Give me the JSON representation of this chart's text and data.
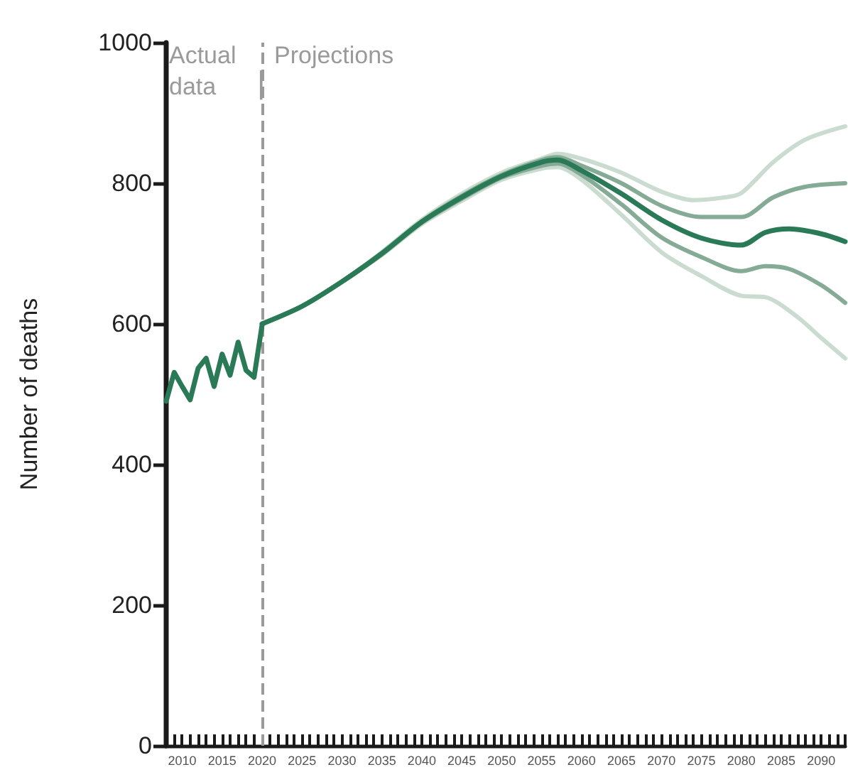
{
  "chart_data": {
    "type": "line",
    "ylabel": "Number of deaths",
    "xlim": [
      2008,
      2093
    ],
    "ylim": [
      0,
      1000
    ],
    "yticks": [
      0,
      200,
      400,
      600,
      800,
      1000
    ],
    "xticks": [
      {
        "value": 2008,
        "label": null
      },
      {
        "value": 2009,
        "label": null
      },
      2010,
      {
        "value": 2011,
        "label": null
      },
      {
        "value": 2012,
        "label": null
      },
      {
        "value": 2013,
        "label": null
      },
      {
        "value": 2014,
        "label": null
      },
      2015,
      {
        "value": 2016,
        "label": null
      },
      {
        "value": 2017,
        "label": null
      },
      {
        "value": 2018,
        "label": null
      },
      {
        "value": 2019,
        "label": null
      },
      2020,
      {
        "value": 2021,
        "label": null
      },
      {
        "value": 2022,
        "label": null
      },
      {
        "value": 2023,
        "label": null
      },
      {
        "value": 2024,
        "label": null
      },
      2025,
      {
        "value": 2026,
        "label": null
      },
      {
        "value": 2027,
        "label": null
      },
      {
        "value": 2028,
        "label": null
      },
      {
        "value": 2029,
        "label": null
      },
      2030,
      {
        "value": 2031,
        "label": null
      },
      {
        "value": 2032,
        "label": null
      },
      {
        "value": 2033,
        "label": null
      },
      {
        "value": 2034,
        "label": null
      },
      2035,
      {
        "value": 2036,
        "label": null
      },
      {
        "value": 2037,
        "label": null
      },
      {
        "value": 2038,
        "label": null
      },
      {
        "value": 2039,
        "label": null
      },
      2040,
      {
        "value": 2041,
        "label": null
      },
      {
        "value": 2042,
        "label": null
      },
      {
        "value": 2043,
        "label": null
      },
      {
        "value": 2044,
        "label": null
      },
      2045,
      {
        "value": 2046,
        "label": null
      },
      {
        "value": 2047,
        "label": null
      },
      {
        "value": 2048,
        "label": null
      },
      {
        "value": 2049,
        "label": null
      },
      2050,
      {
        "value": 2051,
        "label": null
      },
      {
        "value": 2052,
        "label": null
      },
      {
        "value": 2053,
        "label": null
      },
      {
        "value": 2054,
        "label": null
      },
      2055,
      {
        "value": 2056,
        "label": null
      },
      {
        "value": 2057,
        "label": null
      },
      {
        "value": 2058,
        "label": null
      },
      {
        "value": 2059,
        "label": null
      },
      2060,
      {
        "value": 2061,
        "label": null
      },
      {
        "value": 2062,
        "label": null
      },
      {
        "value": 2063,
        "label": null
      },
      {
        "value": 2064,
        "label": null
      },
      2065,
      {
        "value": 2066,
        "label": null
      },
      {
        "value": 2067,
        "label": null
      },
      {
        "value": 2068,
        "label": null
      },
      {
        "value": 2069,
        "label": null
      },
      2070,
      {
        "value": 2071,
        "label": null
      },
      {
        "value": 2072,
        "label": null
      },
      {
        "value": 2073,
        "label": null
      },
      {
        "value": 2074,
        "label": null
      },
      2075,
      {
        "value": 2076,
        "label": null
      },
      {
        "value": 2077,
        "label": null
      },
      {
        "value": 2078,
        "label": null
      },
      {
        "value": 2079,
        "label": null
      },
      2080,
      {
        "value": 2081,
        "label": null
      },
      {
        "value": 2082,
        "label": null
      },
      {
        "value": 2083,
        "label": null
      },
      {
        "value": 2084,
        "label": null
      },
      2085,
      {
        "value": 2086,
        "label": null
      },
      {
        "value": 2087,
        "label": null
      },
      {
        "value": 2088,
        "label": null
      },
      {
        "value": 2089,
        "label": null
      },
      2090,
      {
        "value": 2091,
        "label": null
      },
      {
        "value": 2092,
        "label": null
      },
      {
        "value": 2093,
        "label": null
      }
    ],
    "grid": false,
    "marker": "none",
    "line_style": "solid",
    "ref_lines": [
      {
        "axis": "x",
        "value": 2020,
        "color": "#9a9a9a",
        "line_style": "dashed"
      }
    ],
    "annotations": [
      "Actual data",
      "|",
      "Projections"
    ],
    "series": [
      {
        "color": "#cadbd0",
        "x": [
          2020,
          2025,
          2030,
          2035,
          2040,
          2045,
          2050,
          2055,
          2057,
          2060,
          2065,
          2070,
          2074,
          2078,
          2080,
          2084,
          2088,
          2093
        ],
        "values": [
          600,
          625,
          660,
          702,
          748,
          785,
          815,
          835,
          842,
          835,
          815,
          788,
          776,
          780,
          786,
          830,
          862,
          881
        ]
      },
      {
        "color": "#cadbd0",
        "x": [
          2020,
          2025,
          2030,
          2035,
          2040,
          2045,
          2050,
          2055,
          2057,
          2060,
          2065,
          2070,
          2075,
          2080,
          2083,
          2087,
          2090,
          2093
        ],
        "values": [
          600,
          625,
          660,
          698,
          742,
          775,
          805,
          821,
          823,
          805,
          755,
          702,
          668,
          640,
          638,
          610,
          580,
          551
        ]
      },
      {
        "color": "#85ab96",
        "x": [
          2020,
          2025,
          2030,
          2035,
          2040,
          2045,
          2050,
          2055,
          2057,
          2060,
          2065,
          2070,
          2075,
          2080,
          2084,
          2088,
          2093
        ],
        "values": [
          600,
          625,
          660,
          701,
          746,
          782,
          812,
          833,
          837,
          825,
          800,
          768,
          752,
          752,
          780,
          795,
          800
        ]
      },
      {
        "color": "#85ab96",
        "x": [
          2020,
          2025,
          2030,
          2035,
          2040,
          2045,
          2050,
          2055,
          2057,
          2060,
          2065,
          2070,
          2075,
          2080,
          2083,
          2086,
          2090,
          2093
        ],
        "values": [
          600,
          625,
          660,
          699,
          744,
          778,
          808,
          825,
          828,
          812,
          770,
          723,
          695,
          675,
          682,
          678,
          655,
          630
        ]
      },
      {
        "color": "#2a7a57",
        "x": [
          2008,
          2009,
          2010,
          2011,
          2012,
          2013,
          2014,
          2015,
          2016,
          2017,
          2018,
          2019,
          2020
        ],
        "values": [
          490,
          531,
          511,
          492,
          537,
          551,
          511,
          557,
          527,
          574,
          534,
          524,
          598
        ]
      },
      {
        "color": "#2a7a57",
        "x": [
          2020,
          2025,
          2030,
          2035,
          2040,
          2045,
          2050,
          2055,
          2057,
          2060,
          2065,
          2070,
          2075,
          2080,
          2083,
          2086,
          2090,
          2093
        ],
        "values": [
          600,
          625,
          660,
          700,
          745,
          780,
          810,
          830,
          833,
          818,
          785,
          748,
          722,
          712,
          730,
          735,
          728,
          717
        ]
      }
    ]
  }
}
